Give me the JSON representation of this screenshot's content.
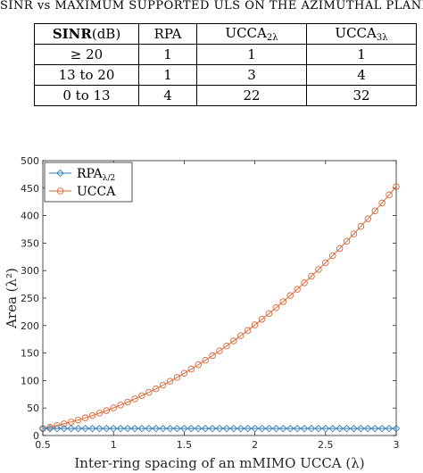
{
  "caption": "SINR vs MAXIMUM SUPPORTED ULS ON THE AZIMUTHAL PLANE",
  "table": {
    "header": {
      "sinr_bold": "SINR",
      "sinr_unit": "(dB)",
      "rpa": "RPA",
      "ucca2_base": "UCCA",
      "ucca2_sub": "2λ",
      "ucca3_base": "UCCA",
      "ucca3_sub": "3λ"
    },
    "rows": [
      {
        "sinr": "≥ 20",
        "rpa": "1",
        "ucca2": "1",
        "ucca3": "1"
      },
      {
        "sinr": "13 to 20",
        "rpa": "1",
        "ucca2": "3",
        "ucca3": "4"
      },
      {
        "sinr": "0 to 13",
        "rpa": "4",
        "ucca2": "22",
        "ucca3": "32"
      }
    ]
  },
  "chart_data": {
    "type": "line",
    "xlabel": "Inter-ring spacing of an mMIMO UCCA (λ)",
    "ylabel": "Area (λ²)",
    "xlim": [
      0.5,
      3
    ],
    "ylim": [
      0,
      500
    ],
    "xticks": [
      0.5,
      1,
      1.5,
      2,
      2.5,
      3
    ],
    "xtick_labels": [
      "0.5",
      "1",
      "1.5",
      "2",
      "2.5",
      "3"
    ],
    "yticks": [
      0,
      50,
      100,
      150,
      200,
      250,
      300,
      350,
      400,
      450,
      500
    ],
    "ytick_labels": [
      "0",
      "50",
      "100",
      "150",
      "200",
      "250",
      "300",
      "350",
      "400",
      "450",
      "500"
    ],
    "legend_position": "top-left",
    "grid": false,
    "x_range": {
      "start": 0.5,
      "stop": 3,
      "step": 0.05
    },
    "series": [
      {
        "name_base": "RPA",
        "name_sub": "λ/2",
        "marker": "diamond",
        "color": "#2f7fb8",
        "constant_value": 12.7
      },
      {
        "name_base": "UCCA",
        "marker": "circle",
        "color": "#d6693a",
        "quadratic_coeffs": {
          "a": 50.3,
          "b": 0,
          "c": 0
        }
      }
    ]
  }
}
